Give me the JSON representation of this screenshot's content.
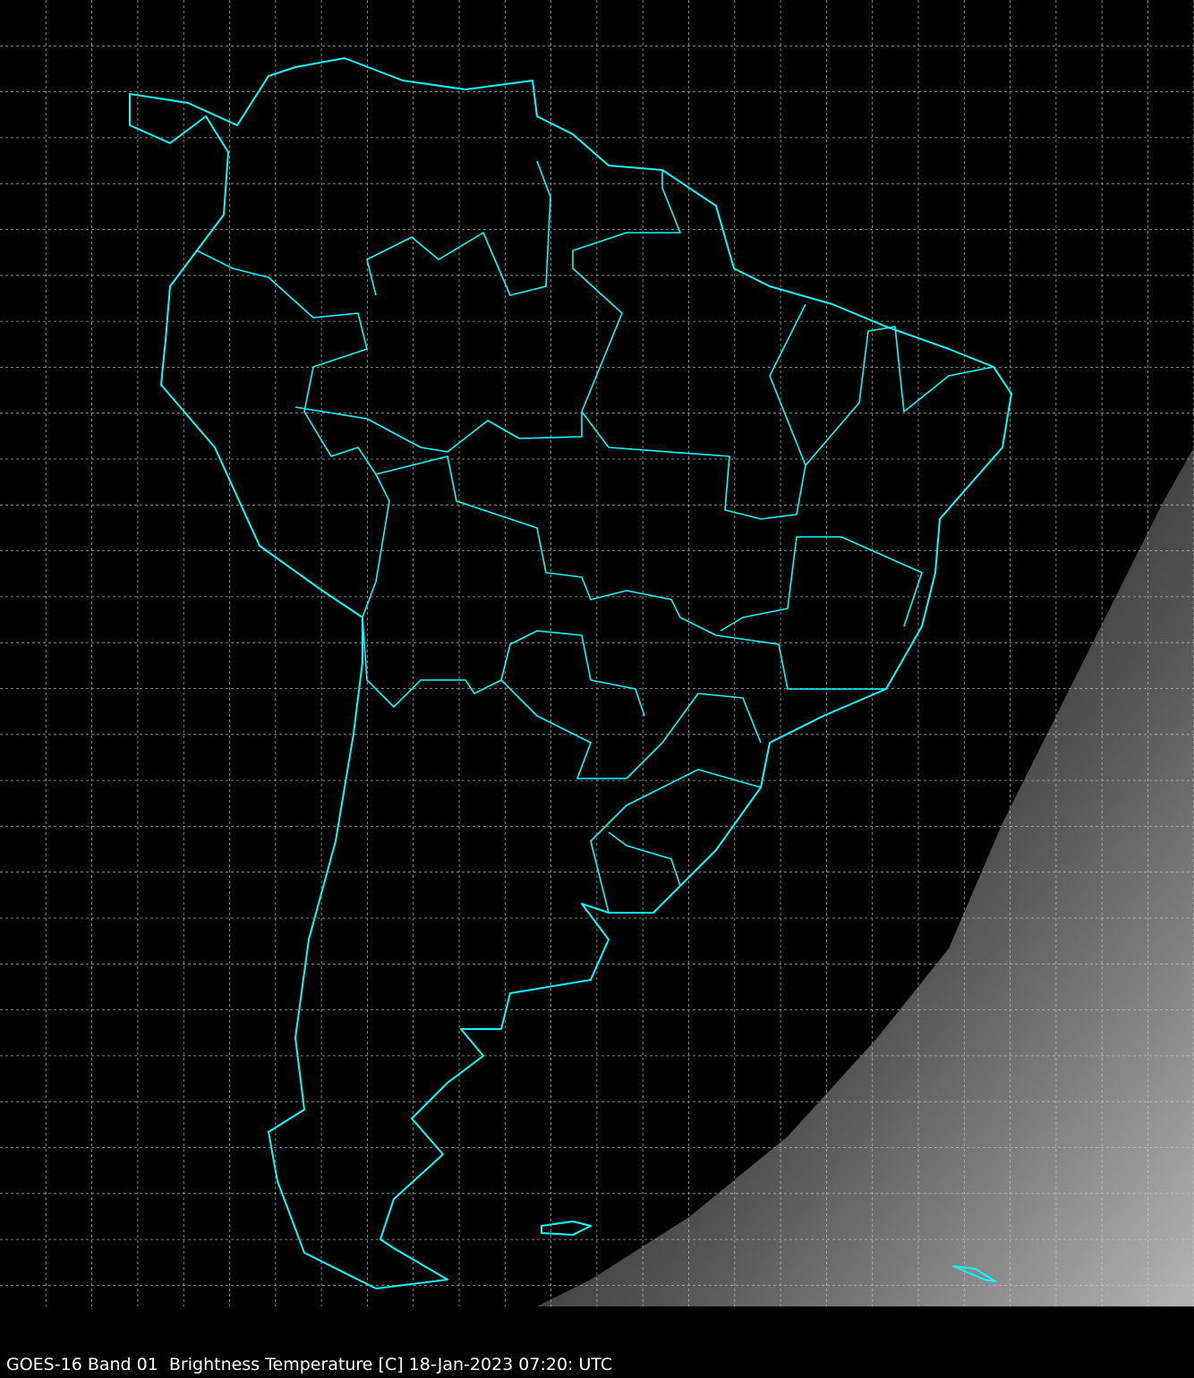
{
  "caption": "GOES-16 Band 01  Brightness Temperature [C] 18-Jan-2023 07:20: UTC",
  "colors": {
    "background": "#000000",
    "coastline": "#00ffff",
    "gridlines": "#cccccc",
    "daylight_dark": "#1a1a1a",
    "daylight_light": "#b0b0b0"
  },
  "map": {
    "region": "South America",
    "gridlines": "dashed",
    "borders": "cyan outlines of coastlines and national/state borders"
  }
}
